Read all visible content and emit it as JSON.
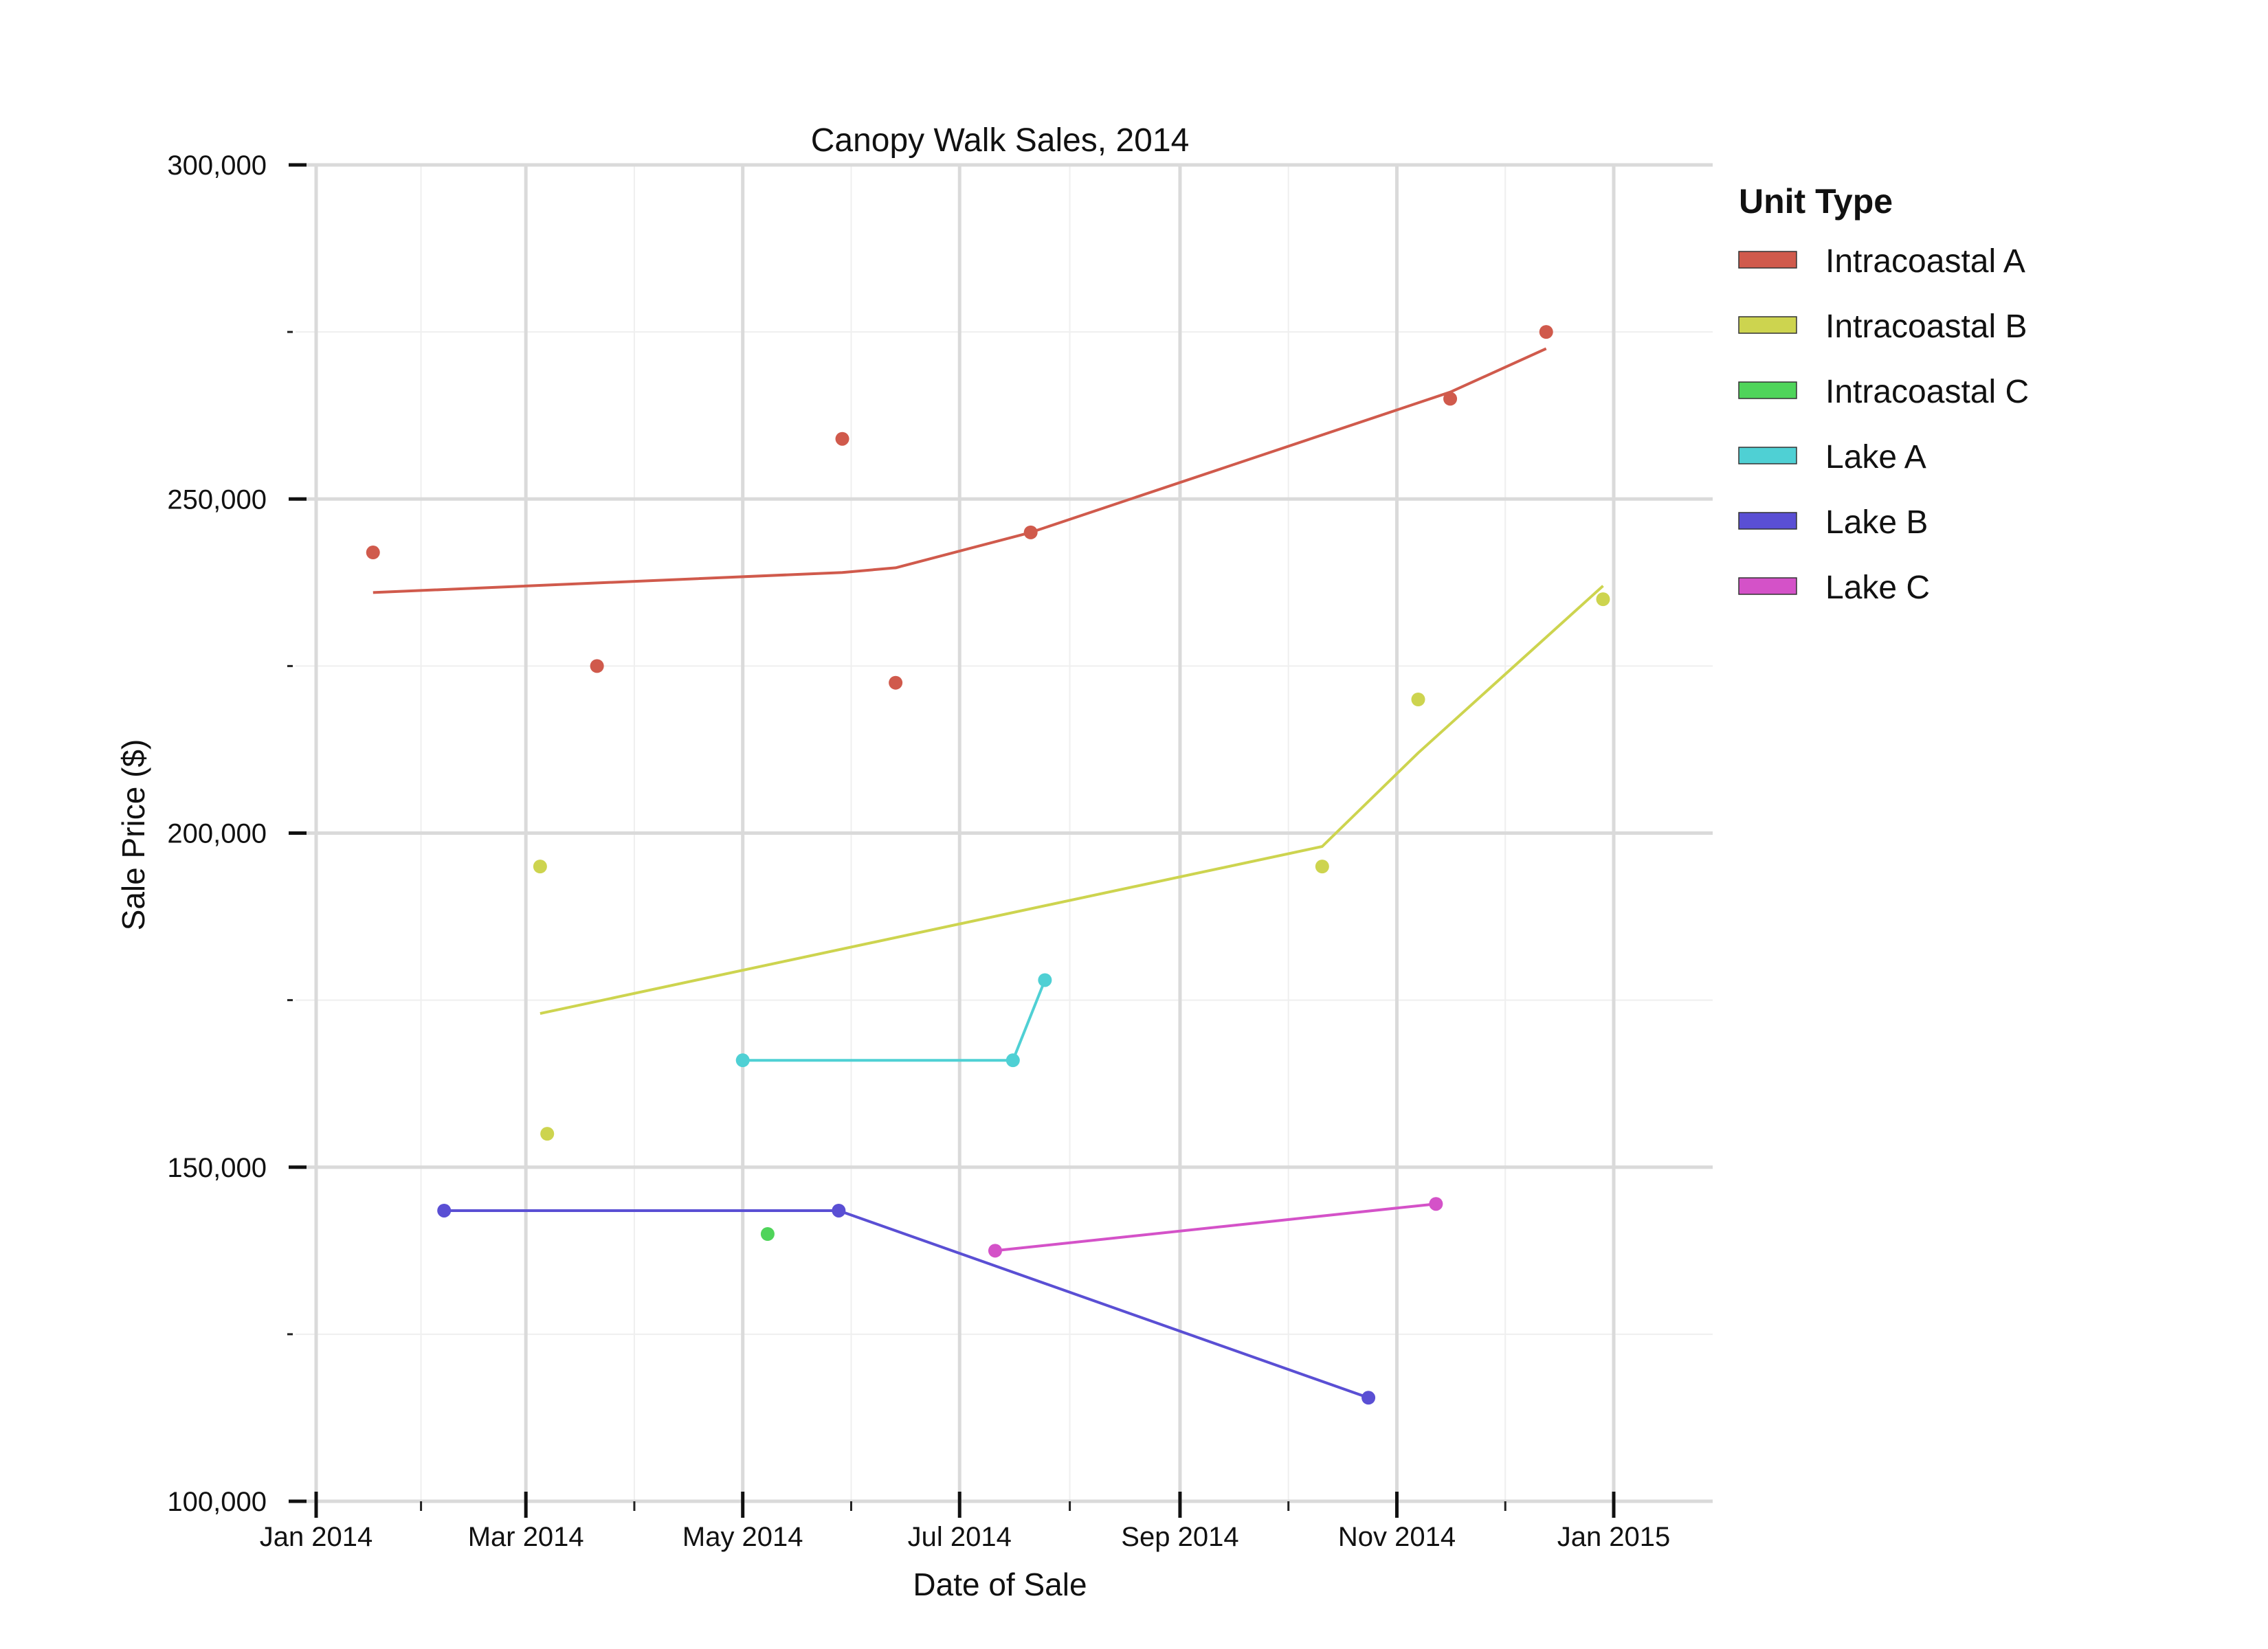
{
  "chart_data": {
    "type": "scatter",
    "title": "Canopy Walk Sales, 2014",
    "xlabel": "Date of Sale",
    "ylabel": "Sale Price ($)",
    "xlim": [
      "2014-01-01",
      "2015-01-28"
    ],
    "ylim": [
      100000,
      300000
    ],
    "x_ticks": [
      "2014-01-01",
      "2014-03-01",
      "2014-05-01",
      "2014-07-01",
      "2014-09-01",
      "2014-11-01",
      "2015-01-01"
    ],
    "x_tick_labels": [
      "Jan 2014",
      "Mar 2014",
      "May 2014",
      "Jul 2014",
      "Sep 2014",
      "Nov 2014",
      "Jan 2015"
    ],
    "y_ticks": [
      100000,
      150000,
      200000,
      250000,
      300000
    ],
    "y_tick_labels": [
      "100,000",
      "150,000",
      "200,000",
      "250,000",
      "300,000"
    ],
    "grid": true,
    "legend": {
      "title": "Unit Type",
      "placement": "right"
    },
    "series": [
      {
        "name": "Intracoastal A",
        "color": "#d05a4c",
        "points": [
          {
            "x": "2014-01-17",
            "y": 242000
          },
          {
            "x": "2014-03-21",
            "y": 225000
          },
          {
            "x": "2014-05-29",
            "y": 259000
          },
          {
            "x": "2014-06-13",
            "y": 222500
          },
          {
            "x": "2014-07-21",
            "y": 245000
          },
          {
            "x": "2014-11-16",
            "y": 265000
          },
          {
            "x": "2014-12-13",
            "y": 275000
          }
        ],
        "trend": [
          {
            "x": "2014-01-17",
            "y": 236000
          },
          {
            "x": "2014-05-29",
            "y": 239000
          },
          {
            "x": "2014-06-13",
            "y": 239700
          },
          {
            "x": "2014-07-21",
            "y": 245000
          },
          {
            "x": "2014-11-16",
            "y": 266000
          },
          {
            "x": "2014-12-13",
            "y": 272500
          }
        ]
      },
      {
        "name": "Intracoastal B",
        "color": "#cdd44f",
        "points": [
          {
            "x": "2014-03-05",
            "y": 195000
          },
          {
            "x": "2014-03-07",
            "y": 155000
          },
          {
            "x": "2014-10-11",
            "y": 195000
          },
          {
            "x": "2014-11-07",
            "y": 220000
          },
          {
            "x": "2014-12-29",
            "y": 235000
          }
        ],
        "trend": [
          {
            "x": "2014-03-05",
            "y": 173000
          },
          {
            "x": "2014-10-11",
            "y": 198000
          },
          {
            "x": "2014-11-07",
            "y": 212000
          },
          {
            "x": "2014-12-29",
            "y": 237000
          }
        ]
      },
      {
        "name": "Intracoastal C",
        "color": "#4fd45a",
        "points": [
          {
            "x": "2014-05-08",
            "y": 140000
          }
        ],
        "trend": []
      },
      {
        "name": "Lake A",
        "color": "#4fd0d4",
        "points": [
          {
            "x": "2014-05-01",
            "y": 166000
          },
          {
            "x": "2014-07-16",
            "y": 166000
          },
          {
            "x": "2014-07-25",
            "y": 178000
          }
        ],
        "trend": [
          {
            "x": "2014-05-01",
            "y": 166000
          },
          {
            "x": "2014-07-16",
            "y": 166000
          },
          {
            "x": "2014-07-25",
            "y": 178000
          }
        ]
      },
      {
        "name": "Lake B",
        "color": "#5a4fd4",
        "points": [
          {
            "x": "2014-02-06",
            "y": 143500
          },
          {
            "x": "2014-05-28",
            "y": 143500
          },
          {
            "x": "2014-10-24",
            "y": 115500
          }
        ],
        "trend": [
          {
            "x": "2014-02-06",
            "y": 143500
          },
          {
            "x": "2014-05-28",
            "y": 143500
          },
          {
            "x": "2014-10-24",
            "y": 115500
          }
        ]
      },
      {
        "name": "Lake C",
        "color": "#d452c8",
        "points": [
          {
            "x": "2014-07-11",
            "y": 137500
          },
          {
            "x": "2014-11-12",
            "y": 144500
          }
        ],
        "trend": [
          {
            "x": "2014-07-11",
            "y": 137500
          },
          {
            "x": "2014-11-12",
            "y": 144500
          }
        ]
      }
    ]
  }
}
